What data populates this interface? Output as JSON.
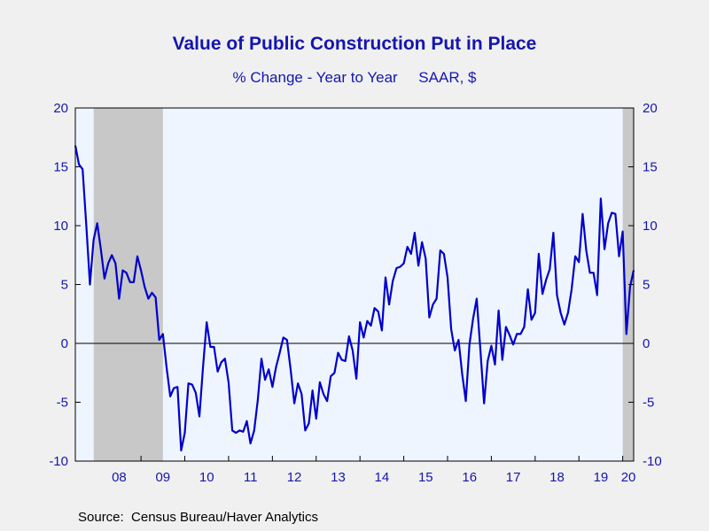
{
  "chart_data": {
    "type": "line",
    "title": "Value of Public Construction Put in Place",
    "subtitle": "% Change - Year to Year     SAAR, $",
    "source": "Source:  Census Bureau/Haver Analytics",
    "ylim": [
      -10,
      20
    ],
    "yticks": [
      "-10",
      "-5",
      "0",
      "5",
      "10",
      "15",
      "20"
    ],
    "xlim": [
      2007.5,
      2020.25
    ],
    "xtick_labels": [
      "08",
      "09",
      "10",
      "11",
      "12",
      "13",
      "14",
      "15",
      "16",
      "17",
      "18",
      "19",
      "20"
    ],
    "recessions": [
      [
        2007.92,
        2009.5
      ],
      [
        2020.0,
        2020.5
      ]
    ],
    "grid": false,
    "colors": {
      "line": "#0000cc",
      "plot_bg": "#eef5ff",
      "recession": "#c8c8c8",
      "text": "#1515b0"
    },
    "series": [
      {
        "values": [
          16.8,
          15.2,
          14.8,
          10.0,
          5.0,
          8.8,
          10.2,
          8.0,
          5.5,
          6.8,
          7.5,
          6.8,
          3.8,
          6.2,
          6.0,
          5.2,
          5.2,
          7.4,
          6.2,
          4.8,
          3.8,
          4.3,
          3.9,
          0.3,
          0.8,
          -2.0,
          -4.5,
          -3.8,
          -3.7,
          -9.1,
          -7.6,
          -3.4,
          -3.5,
          -4.2,
          -6.2,
          -2.0,
          1.8,
          -0.3,
          -0.3,
          -2.4,
          -1.6,
          -1.3,
          -3.3,
          -7.4,
          -7.6,
          -7.4,
          -7.5,
          -6.6,
          -8.5,
          -7.4,
          -4.8,
          -1.3,
          -3.1,
          -2.2,
          -3.7,
          -2.0,
          -0.8,
          0.5,
          0.3,
          -2.2,
          -5.1,
          -3.4,
          -4.3,
          -7.4,
          -6.8,
          -4.0,
          -6.4,
          -3.3,
          -4.3,
          -4.9,
          -2.8,
          -2.5,
          -0.8,
          -1.4,
          -1.5,
          0.6,
          -0.6,
          -3.0,
          1.8,
          0.5,
          1.9,
          1.5,
          3.0,
          2.7,
          1.1,
          5.6,
          3.3,
          5.3,
          6.4,
          6.5,
          6.8,
          8.2,
          7.6,
          9.4,
          6.6,
          8.6,
          7.2,
          2.2,
          3.3,
          3.8,
          7.9,
          7.6,
          5.6,
          1.2,
          -0.6,
          0.3,
          -2.6,
          -4.9,
          -0.1,
          2.1,
          3.8,
          -0.6,
          -5.1,
          -1.5,
          -0.2,
          -1.8,
          2.8,
          -1.4,
          1.4,
          0.7,
          -0.1,
          0.8,
          0.8,
          1.4,
          4.6,
          2.0,
          2.6,
          7.6,
          4.2,
          5.4,
          6.3,
          9.4,
          4.1,
          2.6,
          1.6,
          2.6,
          4.6,
          7.4,
          6.9,
          11.0,
          7.9,
          6.0,
          6.0,
          4.1,
          12.3,
          8.0,
          10.2,
          11.1,
          11.0,
          7.4,
          9.5,
          0.8,
          4.8,
          6.2
        ],
        "start": 2007.5,
        "step_months": 1
      }
    ]
  }
}
